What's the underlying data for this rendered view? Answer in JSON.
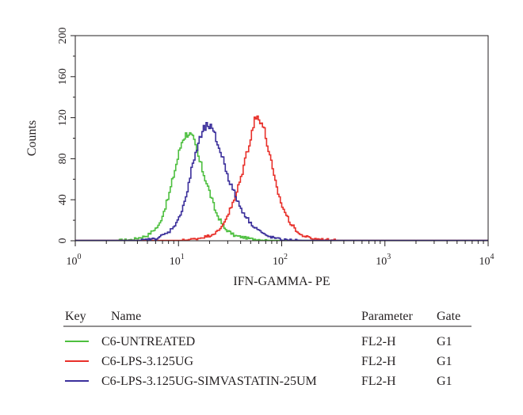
{
  "chart_data": {
    "type": "line",
    "xlabel": "IFN-GAMMA- PE",
    "ylabel": "Counts",
    "x_scale": "log",
    "xlim": [
      1,
      10000
    ],
    "ylim": [
      0,
      200
    ],
    "x_ticks": [
      {
        "value": 1,
        "base": "10",
        "exp": "0"
      },
      {
        "value": 10,
        "base": "10",
        "exp": "1"
      },
      {
        "value": 100,
        "base": "10",
        "exp": "2"
      },
      {
        "value": 1000,
        "base": "10",
        "exp": "3"
      },
      {
        "value": 10000,
        "base": "10",
        "exp": "4"
      }
    ],
    "y_ticks": [
      "0",
      "40",
      "80",
      "120",
      "160",
      "200"
    ],
    "series": [
      {
        "name": "C6-UNTREATED",
        "color": "#4dbf3f",
        "x": [
          1.0,
          2.0,
          3.5,
          5.0,
          6.5,
          8.0,
          9.5,
          11.0,
          12.5,
          14.0,
          16.0,
          19.0,
          23.0,
          28.0,
          35.0,
          50.0,
          80.0,
          200.0,
          10000.0
        ],
        "y": [
          0,
          0,
          1,
          5,
          15,
          42,
          74,
          100,
          106,
          98,
          78,
          55,
          28,
          12,
          5,
          2,
          0,
          0,
          0
        ]
      },
      {
        "name": "C6-LPS-3.125UG",
        "color": "#e8302a",
        "x": [
          1.0,
          10.0,
          15.0,
          20.0,
          25.0,
          30.0,
          35.0,
          40.0,
          47.0,
          55.0,
          60.0,
          67.0,
          75.0,
          85.0,
          100.0,
          120.0,
          150.0,
          200.0,
          400.0,
          10000.0
        ],
        "y": [
          0,
          0,
          2,
          5,
          10,
          25,
          40,
          60,
          90,
          118,
          122,
          110,
          88,
          60,
          35,
          18,
          6,
          2,
          0,
          0
        ]
      },
      {
        "name": "C6-LPS-3.125UG-SIMVASTATIN-25UM",
        "color": "#3b2f9b",
        "x": [
          1.0,
          4.0,
          6.0,
          8.0,
          10.0,
          12.0,
          14.0,
          16.0,
          18.0,
          20.0,
          23.0,
          27.0,
          32.0,
          40.0,
          50.0,
          70.0,
          100.0,
          200.0,
          10000.0
        ],
        "y": [
          0,
          0,
          2,
          8,
          20,
          45,
          78,
          98,
          110,
          112,
          100,
          80,
          55,
          32,
          17,
          5,
          1,
          0,
          0
        ]
      }
    ],
    "legend": {
      "headers": {
        "key": "Key",
        "name": "Name",
        "parameter": "Parameter",
        "gate": "Gate"
      },
      "rows": [
        {
          "name": "C6-UNTREATED",
          "parameter": "FL2-H",
          "gate": "G1"
        },
        {
          "name": "C6-LPS-3.125UG",
          "parameter": "FL2-H",
          "gate": "G1"
        },
        {
          "name": "C6-LPS-3.125UG-SIMVASTATIN-25UM",
          "parameter": "FL2-H",
          "gate": "G1"
        }
      ]
    }
  }
}
